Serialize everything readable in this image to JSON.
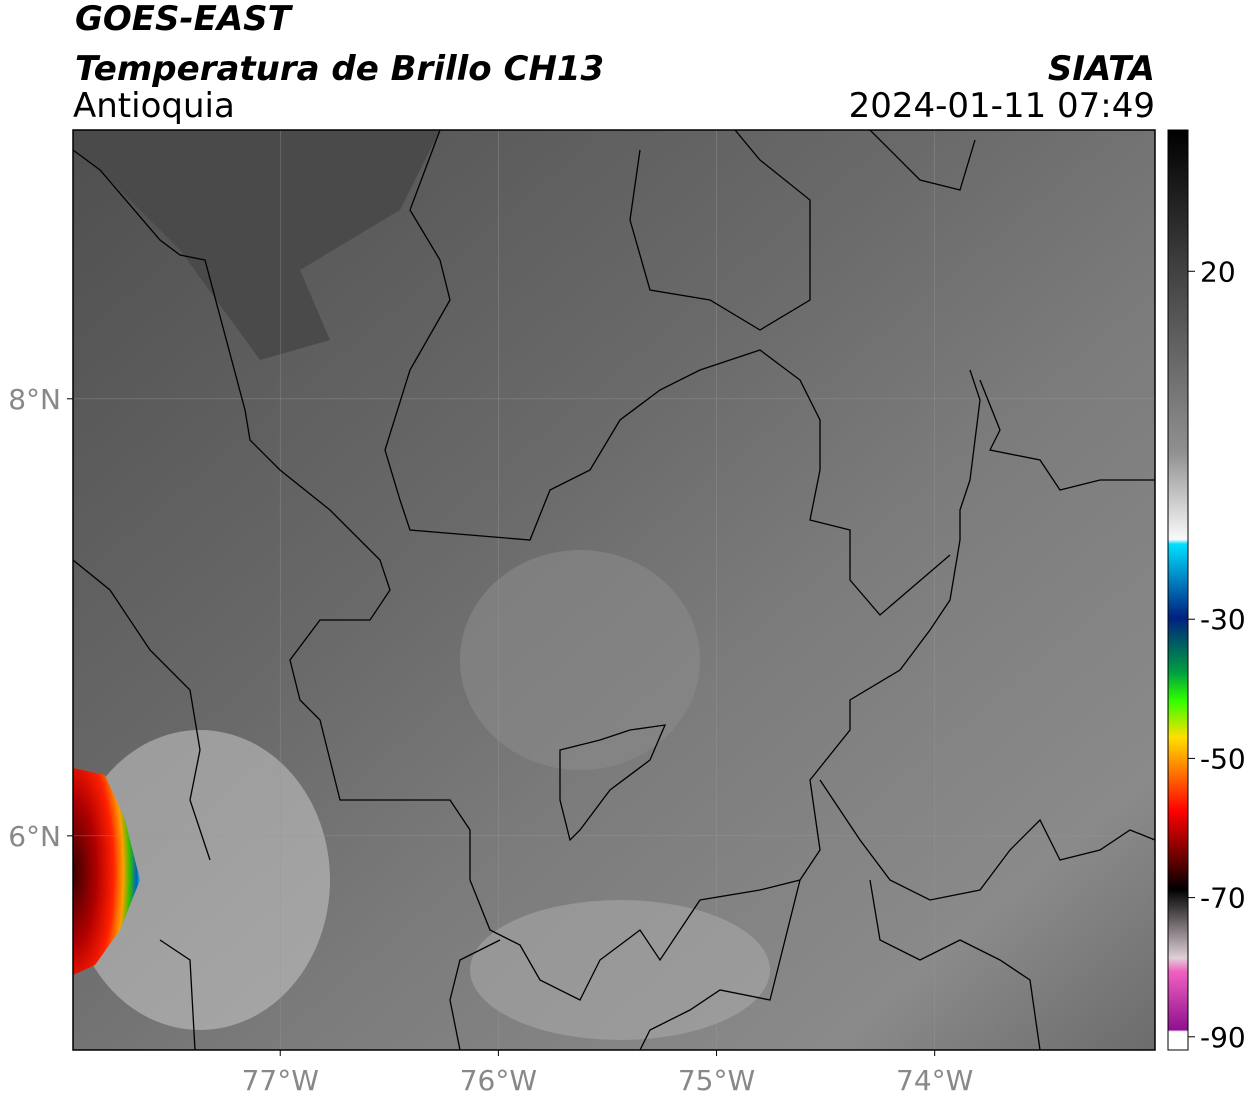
{
  "header": {
    "title": "GOES-EAST",
    "subtitle": "Temperatura de Brillo CH13",
    "region": "Antioquia",
    "source": "SIATA",
    "datetime": "2024-01-11 07:49"
  },
  "map": {
    "xlim": [
      -77.95,
      -72.99
    ],
    "ylim": [
      5.02,
      9.23
    ],
    "xticks": [
      {
        "value": -77,
        "label": "77°W"
      },
      {
        "value": -76,
        "label": "76°W"
      },
      {
        "value": -75,
        "label": "75°W"
      },
      {
        "value": -74,
        "label": "74°W"
      }
    ],
    "yticks": [
      {
        "value": 8,
        "label": "8°N"
      },
      {
        "value": 6,
        "label": "6°N"
      }
    ]
  },
  "colorbar": {
    "lim": [
      40.3,
      -91.9
    ],
    "ticks": [
      20,
      -30,
      -50,
      -70,
      -90
    ]
  }
}
